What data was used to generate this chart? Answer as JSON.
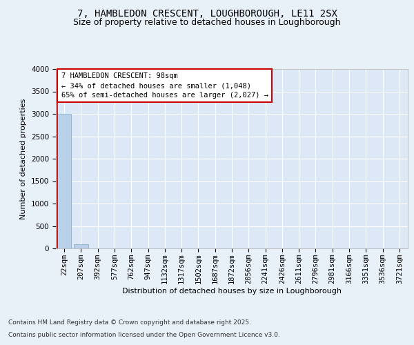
{
  "title": "7, HAMBLEDON CRESCENT, LOUGHBOROUGH, LE11 2SX",
  "subtitle": "Size of property relative to detached houses in Loughborough",
  "xlabel": "Distribution of detached houses by size in Loughborough",
  "ylabel": "Number of detached properties",
  "categories": [
    "22sqm",
    "207sqm",
    "392sqm",
    "577sqm",
    "762sqm",
    "947sqm",
    "1132sqm",
    "1317sqm",
    "1502sqm",
    "1687sqm",
    "1872sqm",
    "2056sqm",
    "2241sqm",
    "2426sqm",
    "2611sqm",
    "2796sqm",
    "2981sqm",
    "3166sqm",
    "3351sqm",
    "3536sqm",
    "3721sqm"
  ],
  "bar_values": [
    3000,
    100,
    0,
    0,
    0,
    0,
    0,
    0,
    0,
    0,
    0,
    0,
    0,
    0,
    0,
    0,
    0,
    0,
    0,
    0,
    0
  ],
  "bar_color": "#b8d0e8",
  "bar_edge_color": "#7aaac8",
  "plot_bg_color": "#dce8f5",
  "fig_bg_color": "#e8f0f8",
  "grid_color": "#ffffff",
  "annotation_text": "7 HAMBLEDON CRESCENT: 98sqm\n← 34% of detached houses are smaller (1,048)\n65% of semi-detached houses are larger (2,027) →",
  "annotation_box_color": "#ffffff",
  "annotation_border_color": "#cc0000",
  "vline_color": "#cc0000",
  "ylim": [
    0,
    4000
  ],
  "yticks": [
    0,
    500,
    1000,
    1500,
    2000,
    2500,
    3000,
    3500,
    4000
  ],
  "footer_line1": "Contains HM Land Registry data © Crown copyright and database right 2025.",
  "footer_line2": "Contains public sector information licensed under the Open Government Licence v3.0.",
  "title_fontsize": 10,
  "subtitle_fontsize": 9,
  "axis_label_fontsize": 8,
  "tick_fontsize": 7.5,
  "annotation_fontsize": 7.5,
  "footer_fontsize": 6.5
}
